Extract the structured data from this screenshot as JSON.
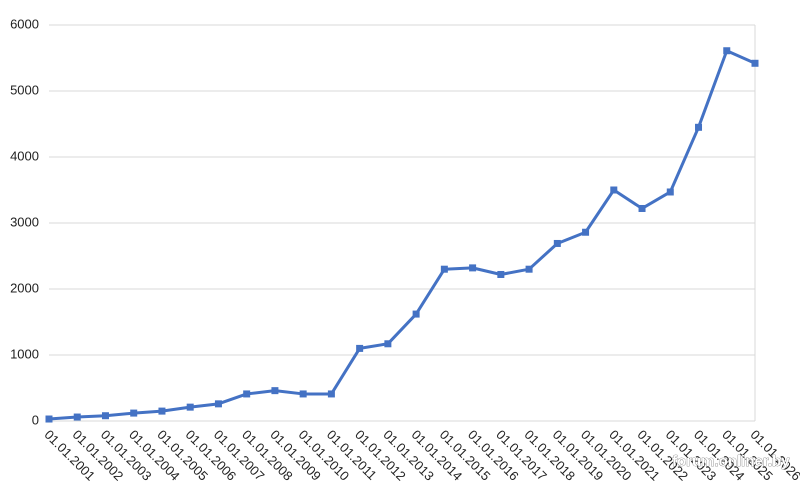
{
  "chart_data": {
    "type": "line",
    "categories": [
      "01.01.2001",
      "01.01.2002",
      "01.01.2003",
      "01.01.2004",
      "01.01.2005",
      "01.01.2006",
      "01.01.2007",
      "01.01.2008",
      "01.01.2009",
      "01.01.2010",
      "01.01.2011",
      "01.01.2012",
      "01.01.2013",
      "01.01.2014",
      "01.01.2015",
      "01.01.2016",
      "01.01.2017",
      "01.01.2018",
      "01.01.2019",
      "01.01.2020",
      "01.01.2021",
      "01.01.2022",
      "01.01.2023",
      "01.01.2024",
      "01.01.2025",
      "01.01.2026"
    ],
    "values": [
      30,
      60,
      80,
      120,
      150,
      210,
      260,
      410,
      460,
      410,
      410,
      1100,
      1170,
      1620,
      2300,
      2320,
      2220,
      2300,
      2690,
      2860,
      3500,
      3220,
      3470,
      4450,
      5610,
      5420
    ],
    "color": "#4472c4",
    "ylim": [
      0,
      6000
    ],
    "yticks": [
      0,
      1000,
      2000,
      3000,
      4000,
      5000,
      6000
    ],
    "grid": true,
    "watermark": "forum.onliner.by"
  }
}
